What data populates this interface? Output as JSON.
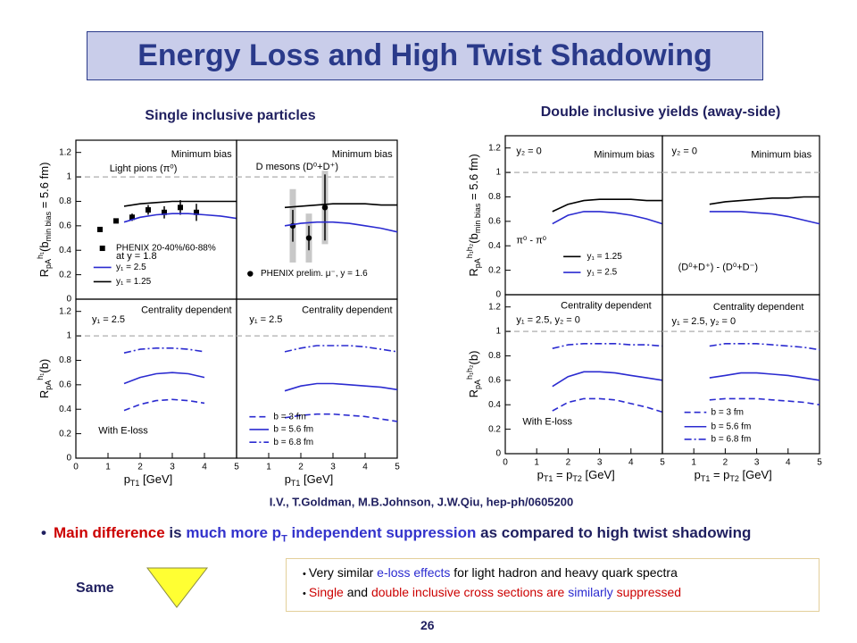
{
  "title": "Energy Loss and High Twist Shadowing",
  "left_heading": "Single inclusive particles",
  "right_heading": "Double inclusive yields (away-side)",
  "citation": "I.V., T.Goldman, M.B.Johnson, J.W.Qiu, hep-ph/0605200",
  "bullet": [
    {
      "t": "Main difference",
      "c": "#cc0000"
    },
    {
      "t": " is ",
      "c": "#1f1f5f"
    },
    {
      "t": "much more p",
      "c": "#3333cc"
    },
    {
      "t": "T",
      "c": "#3333cc",
      "s": "sub"
    },
    {
      "t": " independent suppression",
      "c": "#3333cc"
    },
    {
      "t": " as compared to high twist shadowing",
      "c": "#1f1f5f"
    }
  ],
  "same_label": "Same",
  "box_bullets": [
    [
      {
        "t": "Very similar ",
        "c": "#000000"
      },
      {
        "t": "e-loss effects",
        "c": "#2b2bd0"
      },
      {
        "t": " for  light hadron and heavy quark spectra",
        "c": "#000000"
      }
    ],
    [
      {
        "t": "Single",
        "c": "#cc0000"
      },
      {
        "t": " and ",
        "c": "#000000"
      },
      {
        "t": "double",
        "c": "#cc0000"
      },
      {
        "t": " inclusive cross sections are ",
        "c": "#cc0000"
      },
      {
        "t": "similarly",
        "c": "#2b2bd0"
      },
      {
        "t": " suppressed",
        "c": "#cc0000"
      }
    ]
  ],
  "page_number": "26",
  "chart_data": [
    {
      "type": "line",
      "xlim": [
        0,
        5
      ],
      "ylim": [
        0,
        1.3
      ],
      "yticks": [
        0,
        0.2,
        0.4,
        0.6,
        0.8,
        1,
        1.2
      ],
      "ref_line": 1,
      "ylabel": [
        {
          "t": "R"
        },
        {
          "t": "pA",
          "s": "sub"
        },
        {
          "t": "h₁",
          "s": "sup"
        },
        {
          "t": "(b"
        },
        {
          "t": "min bias",
          "s": "sub"
        },
        {
          "t": " = 5.6 fm)"
        }
      ],
      "annotations": [
        "Minimum bias",
        "Light pions (π⁰)",
        "at y = 1.8"
      ],
      "series": [
        {
          "name": "PHENIX 20-40%/60-88%",
          "marker": "square",
          "color": "#000000",
          "x": [
            0.75,
            1.25,
            1.75,
            2.25,
            2.75,
            3.25,
            3.75
          ],
          "values": [
            0.57,
            0.64,
            0.67,
            0.73,
            0.71,
            0.75,
            0.71
          ],
          "errors": [
            0.02,
            0.02,
            0.03,
            0.04,
            0.05,
            0.06,
            0.07
          ]
        },
        {
          "name": "y₁ = 2.5",
          "color": "#2b2bd0",
          "dash": "solid",
          "x": [
            1.5,
            2,
            2.5,
            3,
            3.5,
            4,
            4.5,
            5
          ],
          "values": [
            0.63,
            0.67,
            0.69,
            0.7,
            0.7,
            0.69,
            0.68,
            0.66
          ]
        },
        {
          "name": "y₁ = 1.25",
          "color": "#000000",
          "dash": "solid",
          "x": [
            1.5,
            2,
            2.5,
            3,
            3.5,
            4,
            4.5,
            5
          ],
          "values": [
            0.76,
            0.78,
            0.79,
            0.8,
            0.8,
            0.8,
            0.8,
            0.8
          ]
        }
      ]
    },
    {
      "type": "line",
      "xlim": [
        0,
        5
      ],
      "ylim": [
        0,
        1.3
      ],
      "ref_line": 1,
      "annotations": [
        "Minimum bias",
        "D mesons (D⁰+D⁺)"
      ],
      "series": [
        {
          "name": "PHENIX prelim. μ⁻, y = 1.6",
          "marker": "circle",
          "color": "#000000",
          "x": [
            1.75,
            2.25,
            2.75
          ],
          "values": [
            0.6,
            0.5,
            0.75
          ],
          "errors": [
            0.13,
            0.1,
            0.27
          ],
          "sys_errors": [
            0.3,
            0.2,
            0.3
          ]
        },
        {
          "color": "#000000",
          "dash": "solid",
          "x": [
            1.5,
            2,
            2.5,
            3,
            3.5,
            4,
            4.5,
            5
          ],
          "values": [
            0.75,
            0.76,
            0.77,
            0.78,
            0.78,
            0.78,
            0.77,
            0.77
          ]
        },
        {
          "color": "#2b2bd0",
          "dash": "solid",
          "x": [
            1.5,
            2,
            2.5,
            3,
            3.5,
            4,
            4.5,
            5
          ],
          "values": [
            0.6,
            0.62,
            0.63,
            0.63,
            0.62,
            0.6,
            0.58,
            0.55
          ]
        }
      ]
    },
    {
      "type": "line",
      "xlim": [
        0,
        5
      ],
      "ylim": [
        0,
        1.3
      ],
      "xticks": [
        0,
        1,
        2,
        3,
        4,
        5
      ],
      "yticks": [
        0,
        0.2,
        0.4,
        0.6,
        0.8,
        1,
        1.2
      ],
      "ref_line": 1,
      "ylabel": [
        {
          "t": "R"
        },
        {
          "t": "pA",
          "s": "sub"
        },
        {
          "t": "h₁",
          "s": "sup"
        },
        {
          "t": "(b)"
        }
      ],
      "xlabel": [
        {
          "t": "p"
        },
        {
          "t": "T1",
          "s": "sub"
        },
        {
          "t": " [GeV]"
        }
      ],
      "annotations": [
        "y₁ = 2.5",
        "Centrality dependent",
        "With E-loss"
      ],
      "series": [
        {
          "color": "#2b2bd0",
          "dash": "dashdot",
          "x": [
            1.5,
            2,
            2.5,
            3,
            3.5,
            4
          ],
          "values": [
            0.86,
            0.89,
            0.9,
            0.9,
            0.89,
            0.87
          ]
        },
        {
          "color": "#2b2bd0",
          "dash": "solid",
          "x": [
            1.5,
            2,
            2.5,
            3,
            3.5,
            4
          ],
          "values": [
            0.61,
            0.66,
            0.69,
            0.7,
            0.69,
            0.66
          ]
        },
        {
          "color": "#2b2bd0",
          "dash": "dashed",
          "x": [
            1.5,
            2,
            2.5,
            3,
            3.5,
            4
          ],
          "values": [
            0.39,
            0.44,
            0.47,
            0.48,
            0.47,
            0.45
          ]
        }
      ]
    },
    {
      "type": "line",
      "xlim": [
        0,
        5
      ],
      "ylim": [
        0,
        1.3
      ],
      "xticks": [
        1,
        2,
        3,
        4,
        5
      ],
      "ref_line": 1,
      "xlabel": [
        {
          "t": "p"
        },
        {
          "t": "T1",
          "s": "sub"
        },
        {
          "t": " [GeV]"
        }
      ],
      "annotations": [
        "y₁ = 2.5",
        "Centrality dependent"
      ],
      "series": [
        {
          "name": "b = 3 fm",
          "color": "#2b2bd0",
          "dash": "dashed",
          "x": [
            1.5,
            2,
            2.5,
            3,
            3.5,
            4,
            4.5,
            5
          ],
          "values": [
            0.33,
            0.35,
            0.36,
            0.36,
            0.35,
            0.34,
            0.32,
            0.3
          ]
        },
        {
          "name": "b = 5.6 fm",
          "color": "#2b2bd0",
          "dash": "solid",
          "x": [
            1.5,
            2,
            2.5,
            3,
            3.5,
            4,
            4.5,
            5
          ],
          "values": [
            0.55,
            0.59,
            0.61,
            0.61,
            0.6,
            0.59,
            0.58,
            0.56
          ]
        },
        {
          "name": "b = 6.8 fm",
          "color": "#2b2bd0",
          "dash": "dashdot",
          "x": [
            1.5,
            2,
            2.5,
            3,
            3.5,
            4,
            4.5,
            5
          ],
          "values": [
            0.87,
            0.9,
            0.92,
            0.92,
            0.92,
            0.91,
            0.89,
            0.87
          ]
        }
      ]
    },
    {
      "type": "line",
      "xlim": [
        0,
        5
      ],
      "ylim": [
        0,
        1.3
      ],
      "yticks": [
        0,
        0.2,
        0.4,
        0.6,
        0.8,
        1,
        1.2
      ],
      "ref_line": 1,
      "ylabel": [
        {
          "t": "R"
        },
        {
          "t": "pA",
          "s": "sub"
        },
        {
          "t": "h₁h₂",
          "s": "sup"
        },
        {
          "t": "(b"
        },
        {
          "t": "min bias",
          "s": "sub"
        },
        {
          "t": " = 5.6 fm)"
        }
      ],
      "annotations": [
        "y₂ = 0",
        "Minimum bias",
        "π⁰ - π⁰"
      ],
      "series": [
        {
          "name": "y₁ = 1.25",
          "color": "#000000",
          "dash": "solid",
          "x": [
            1.5,
            2,
            2.5,
            3,
            3.5,
            4,
            4.5,
            5
          ],
          "values": [
            0.68,
            0.74,
            0.77,
            0.78,
            0.78,
            0.78,
            0.77,
            0.77
          ]
        },
        {
          "name": "y₁ = 2.5",
          "color": "#2b2bd0",
          "dash": "solid",
          "x": [
            1.5,
            2,
            2.5,
            3,
            3.5,
            4,
            4.5,
            5
          ],
          "values": [
            0.58,
            0.65,
            0.68,
            0.68,
            0.67,
            0.65,
            0.62,
            0.58
          ]
        }
      ]
    },
    {
      "type": "line",
      "xlim": [
        0,
        5
      ],
      "ylim": [
        0,
        1.3
      ],
      "ref_line": 1,
      "annotations": [
        "y₂ = 0",
        "Minimum bias",
        "(D⁰+D⁺) - (D⁰+D⁻)"
      ],
      "series": [
        {
          "color": "#000000",
          "dash": "solid",
          "x": [
            1.5,
            2,
            2.5,
            3,
            3.5,
            4,
            4.5,
            5
          ],
          "values": [
            0.74,
            0.76,
            0.77,
            0.78,
            0.79,
            0.79,
            0.8,
            0.8
          ]
        },
        {
          "color": "#2b2bd0",
          "dash": "solid",
          "x": [
            1.5,
            2,
            2.5,
            3,
            3.5,
            4,
            4.5,
            5
          ],
          "values": [
            0.68,
            0.68,
            0.68,
            0.67,
            0.66,
            0.64,
            0.61,
            0.58
          ]
        }
      ]
    },
    {
      "type": "line",
      "xlim": [
        0,
        5
      ],
      "ylim": [
        0,
        1.3
      ],
      "xticks": [
        0,
        1,
        2,
        3,
        4,
        5
      ],
      "yticks": [
        0,
        0.2,
        0.4,
        0.6,
        0.8,
        1,
        1.2
      ],
      "ref_line": 1,
      "ylabel": [
        {
          "t": "R"
        },
        {
          "t": "pA",
          "s": "sub"
        },
        {
          "t": "h₁h₂",
          "s": "sup"
        },
        {
          "t": "(b)"
        }
      ],
      "xlabel": [
        {
          "t": "p"
        },
        {
          "t": "T1",
          "s": "sub"
        },
        {
          "t": " = p"
        },
        {
          "t": "T2",
          "s": "sub"
        },
        {
          "t": " [GeV]"
        }
      ],
      "annotations": [
        "Centrality dependent",
        "y₁ = 2.5, y₂ = 0",
        "With E-loss"
      ],
      "series": [
        {
          "color": "#2b2bd0",
          "dash": "dashdot",
          "x": [
            1.5,
            2,
            2.5,
            3,
            3.5,
            4,
            4.5,
            5
          ],
          "values": [
            0.86,
            0.89,
            0.9,
            0.9,
            0.9,
            0.89,
            0.89,
            0.88
          ]
        },
        {
          "color": "#2b2bd0",
          "dash": "solid",
          "x": [
            1.5,
            2,
            2.5,
            3,
            3.5,
            4,
            4.5,
            5
          ],
          "values": [
            0.55,
            0.63,
            0.67,
            0.67,
            0.66,
            0.64,
            0.62,
            0.6
          ]
        },
        {
          "color": "#2b2bd0",
          "dash": "dashed",
          "x": [
            1.5,
            2,
            2.5,
            3,
            3.5,
            4,
            4.5,
            5
          ],
          "values": [
            0.35,
            0.42,
            0.45,
            0.45,
            0.44,
            0.41,
            0.38,
            0.34
          ]
        }
      ]
    },
    {
      "type": "line",
      "xlim": [
        0,
        5
      ],
      "ylim": [
        0,
        1.3
      ],
      "xticks": [
        1,
        2,
        3,
        4,
        5
      ],
      "ref_line": 1,
      "xlabel": [
        {
          "t": "p"
        },
        {
          "t": "T1",
          "s": "sub"
        },
        {
          "t": " = p"
        },
        {
          "t": "T2",
          "s": "sub"
        },
        {
          "t": " [GeV]"
        }
      ],
      "annotations": [
        "Centrality dependent",
        "y₁ = 2.5, y₂ = 0"
      ],
      "series": [
        {
          "name": "b = 3 fm",
          "color": "#2b2bd0",
          "dash": "dashed",
          "x": [
            1.5,
            2,
            2.5,
            3,
            3.5,
            4,
            4.5,
            5
          ],
          "values": [
            0.44,
            0.45,
            0.45,
            0.45,
            0.44,
            0.43,
            0.42,
            0.4
          ]
        },
        {
          "name": "b = 5.6 fm",
          "color": "#2b2bd0",
          "dash": "solid",
          "x": [
            1.5,
            2,
            2.5,
            3,
            3.5,
            4,
            4.5,
            5
          ],
          "values": [
            0.62,
            0.64,
            0.66,
            0.66,
            0.65,
            0.64,
            0.62,
            0.6
          ]
        },
        {
          "name": "b = 6.8 fm",
          "color": "#2b2bd0",
          "dash": "dashdot",
          "x": [
            1.5,
            2,
            2.5,
            3,
            3.5,
            4,
            4.5,
            5
          ],
          "values": [
            0.88,
            0.9,
            0.9,
            0.9,
            0.89,
            0.88,
            0.87,
            0.85
          ]
        }
      ]
    }
  ]
}
